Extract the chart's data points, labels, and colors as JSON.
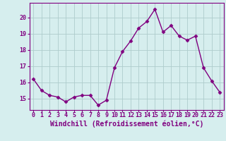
{
  "x": [
    0,
    1,
    2,
    3,
    4,
    5,
    6,
    7,
    8,
    9,
    10,
    11,
    12,
    13,
    14,
    15,
    16,
    17,
    18,
    19,
    20,
    21,
    22,
    23
  ],
  "y": [
    16.2,
    15.5,
    15.2,
    15.1,
    14.8,
    15.1,
    15.2,
    15.2,
    14.6,
    14.9,
    16.9,
    17.9,
    18.55,
    19.35,
    19.75,
    20.5,
    19.1,
    19.5,
    18.85,
    18.6,
    18.85,
    16.9,
    16.1,
    15.4
  ],
  "bg_color": "#d6eeee",
  "grid_color": "#aecccc",
  "xlabel": "Windchill (Refroidissement éolien,°C)",
  "ylim": [
    14.3,
    20.9
  ],
  "xlim": [
    -0.5,
    23.5
  ],
  "yticks": [
    15,
    16,
    17,
    18,
    19,
    20
  ],
  "xticks": [
    0,
    1,
    2,
    3,
    4,
    5,
    6,
    7,
    8,
    9,
    10,
    11,
    12,
    13,
    14,
    15,
    16,
    17,
    18,
    19,
    20,
    21,
    22,
    23
  ],
  "line_color": "#800080",
  "marker": "D",
  "markersize": 2.5,
  "linewidth": 1.0,
  "xlabel_fontsize": 7.0,
  "tick_fontsize": 6.0,
  "tick_color": "#800080",
  "label_color": "#800080",
  "spine_color": "#800080"
}
